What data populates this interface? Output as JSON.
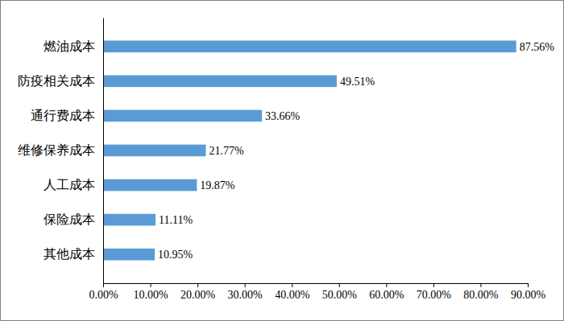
{
  "chart_data": {
    "type": "bar",
    "orientation": "horizontal",
    "categories": [
      "燃油成本",
      "防疫相关成本",
      "通行费成本",
      "维修保养成本",
      "人工成本",
      "保险成本",
      "其他成本"
    ],
    "values": [
      87.56,
      49.51,
      33.66,
      21.77,
      19.87,
      11.11,
      10.95
    ],
    "value_labels": [
      "87.56%",
      "49.51%",
      "33.66%",
      "21.77%",
      "19.87%",
      "11.11%",
      "10.95%"
    ],
    "color": "#5b9bd5",
    "xlim": [
      0,
      90
    ],
    "xticks": [
      {
        "value": 0,
        "label": "0.00%"
      },
      {
        "value": 10,
        "label": "10.00%"
      },
      {
        "value": 20,
        "label": "20.00%"
      },
      {
        "value": 30,
        "label": "30.00%"
      },
      {
        "value": 40,
        "label": "40.00%"
      },
      {
        "value": 50,
        "label": "50.00%"
      },
      {
        "value": 60,
        "label": "60.00%"
      },
      {
        "value": 70,
        "label": "70.00%"
      },
      {
        "value": 80,
        "label": "80.00%"
      },
      {
        "value": 90,
        "label": "90.00%"
      }
    ],
    "grid": false,
    "data_labels": true
  }
}
